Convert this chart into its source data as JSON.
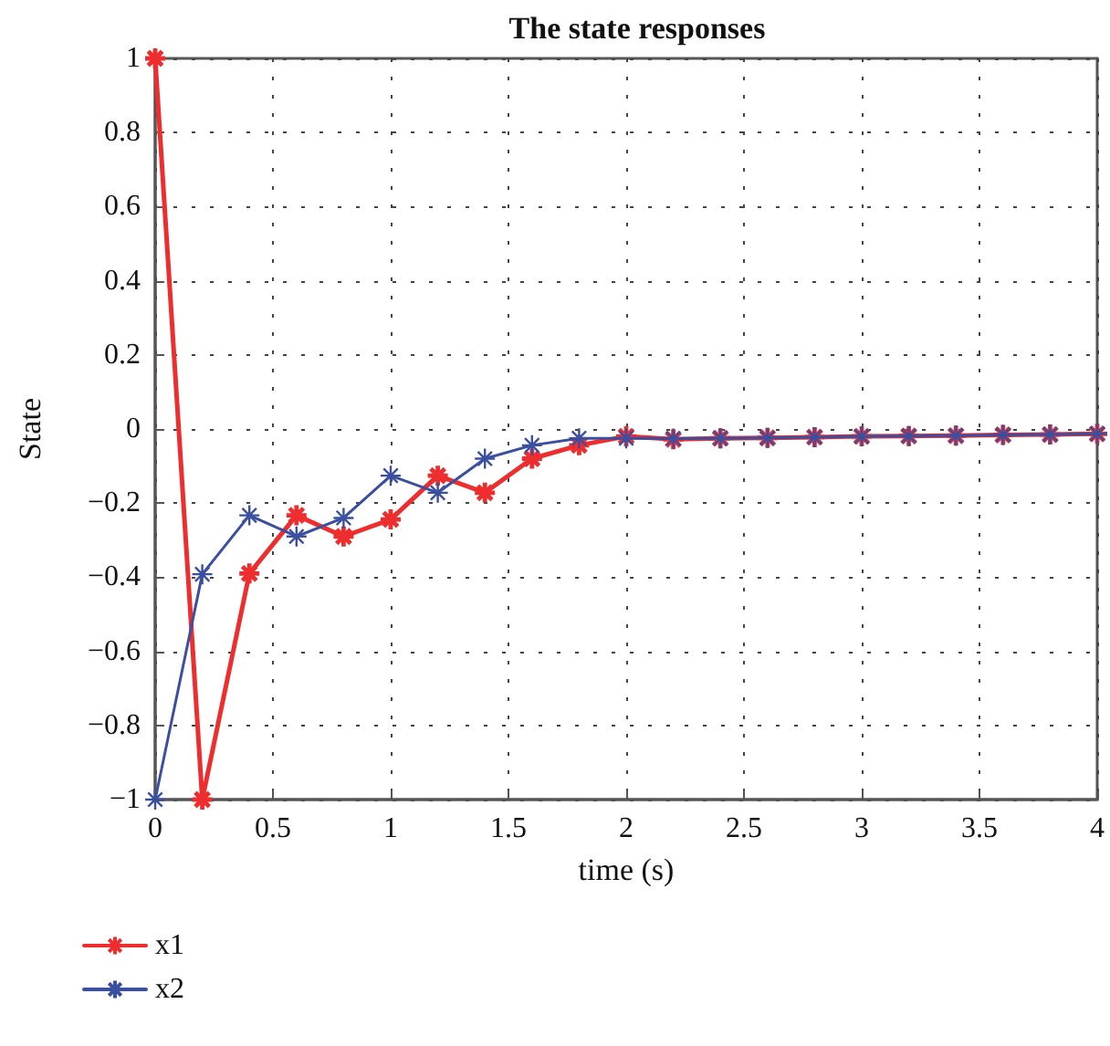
{
  "chart_data": {
    "type": "line",
    "title": "The state responses",
    "xlabel": "time (s)",
    "ylabel": "State",
    "x": [
      0,
      0.2,
      0.4,
      0.6,
      0.8,
      1.0,
      1.2,
      1.4,
      1.6,
      1.8,
      2.0,
      2.2,
      2.4,
      2.6,
      2.8,
      3.0,
      3.2,
      3.4,
      3.6,
      3.8,
      4.0
    ],
    "series": [
      {
        "name": "x1",
        "color": "#ee2d2f",
        "values": [
          1,
          -1,
          -0.39,
          -0.233,
          -0.29,
          -0.244,
          -0.126,
          -0.172,
          -0.08,
          -0.044,
          -0.02,
          -0.028,
          -0.025,
          -0.024,
          -0.022,
          -0.02,
          -0.019,
          -0.018,
          -0.016,
          -0.015,
          -0.013
        ]
      },
      {
        "name": "x2",
        "color": "#3b4fa0",
        "values": [
          -1,
          -0.392,
          -0.233,
          -0.29,
          -0.24,
          -0.126,
          -0.172,
          -0.08,
          -0.044,
          -0.025,
          -0.025,
          -0.026,
          -0.025,
          -0.024,
          -0.022,
          -0.02,
          -0.019,
          -0.018,
          -0.016,
          -0.015,
          -0.013
        ]
      }
    ],
    "xlim": [
      0,
      4
    ],
    "xticks": [
      0,
      0.5,
      1,
      1.5,
      2,
      2.5,
      3,
      3.5,
      4
    ],
    "ylim": [
      -1,
      1
    ],
    "yticks": [
      {
        "value": -1,
        "label": "−1"
      },
      {
        "value": -0.8,
        "label": "−0.8"
      },
      {
        "value": -0.6,
        "label": "−0.6"
      },
      {
        "value": -0.4,
        "label": "−0.4"
      },
      {
        "value": -0.2,
        "label": "−0.2"
      },
      0,
      0.2,
      0.4,
      0.6,
      0.8,
      1
    ],
    "grid": true,
    "legend": "bottom left",
    "marker": "cross",
    "line_style": "solid"
  }
}
